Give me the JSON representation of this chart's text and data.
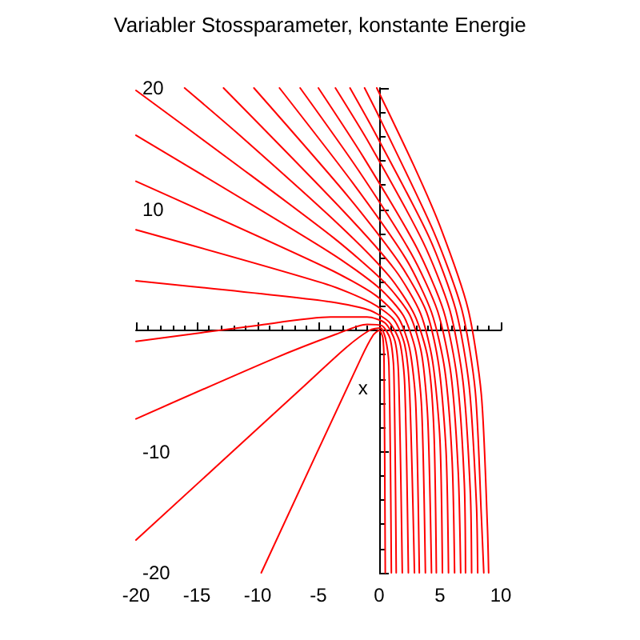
{
  "chart_data": {
    "type": "line",
    "title": "Variabler Stossparameter, konstante Energie",
    "xlabel": "x",
    "xlim": [
      -20,
      10
    ],
    "xticks": [
      -20,
      -15,
      -10,
      -5,
      0,
      5,
      10
    ],
    "ylim": [
      -20,
      20
    ],
    "yticks": [
      -20,
      -10,
      10,
      20
    ],
    "marker": "none",
    "line_style": "solid",
    "series": [
      {
        "color": "#ff0000",
        "x": [
          0.5,
          0.4,
          0.3,
          0,
          -0.5,
          -1.5,
          -9.7
        ],
        "values": [
          -20,
          -2.7,
          -0.6,
          0,
          -0.4,
          -2.3,
          -20
        ]
      },
      {
        "color": "#ff0000",
        "x": [
          1,
          0.8,
          0.5,
          0.1,
          -0.8,
          -2.7,
          -6.3,
          -20
        ],
        "values": [
          -20,
          -2.9,
          -0.6,
          0.2,
          0,
          -1.4,
          -4.7,
          -17.3
        ]
      },
      {
        "color": "#ff0000",
        "x": [
          1.4,
          1.2,
          0.9,
          0.2,
          -1,
          -3.5,
          -8.6,
          -20
        ],
        "values": [
          -20,
          -3.3,
          -0.7,
          0.4,
          0.5,
          -0.3,
          -2.3,
          -7.3
        ]
      },
      {
        "color": "#ff0000",
        "x": [
          1.9,
          1.6,
          1.3,
          0.5,
          -1,
          -4,
          -10.1,
          -20
        ],
        "values": [
          -20,
          -3.9,
          -0.9,
          0.6,
          1.1,
          1.1,
          0.4,
          -0.9
        ]
      },
      {
        "color": "#ff0000",
        "x": [
          2.4,
          2.1,
          1.7,
          0.8,
          -0.9,
          -4.3,
          -20
        ],
        "values": [
          -20,
          -4.5,
          -1,
          0.7,
          1.7,
          2.4,
          4.1
        ]
      },
      {
        "color": "#ff0000",
        "x": [
          2.9,
          2.5,
          2.1,
          1.2,
          -0.7,
          -4.3,
          -20
        ],
        "values": [
          -20,
          -5.1,
          -1.2,
          0.9,
          2.3,
          3.8,
          8.3
        ]
      },
      {
        "color": "#ff0000",
        "x": [
          3.3,
          3,
          2.5,
          1.6,
          -0.3,
          -4.2,
          -20
        ],
        "values": [
          -20,
          -5.9,
          -1.5,
          1,
          2.9,
          5.1,
          12.3
        ]
      },
      {
        "color": "#ff0000",
        "x": [
          3.8,
          3.5,
          3,
          2,
          0,
          -4,
          -20
        ],
        "values": [
          -20,
          -6.6,
          -1.7,
          1.2,
          3.5,
          6.4,
          16.1
        ]
      },
      {
        "color": "#ff0000",
        "x": [
          4.3,
          4,
          3.5,
          2.5,
          0.4,
          -3.7,
          -11.9,
          -20
        ],
        "values": [
          -20,
          -7.4,
          -2,
          1.3,
          4,
          7.6,
          13.8,
          19.8
        ]
      },
      {
        "color": "#ff0000",
        "x": [
          4.7,
          4.5,
          4,
          2.9,
          0.8,
          -3.4,
          -11.7,
          -16
        ],
        "values": [
          -20,
          -8.3,
          -2.3,
          1.3,
          4.5,
          8.8,
          16.3,
          20
        ]
      },
      {
        "color": "#ff0000",
        "x": [
          5.2,
          5,
          4.4,
          3.4,
          1.3,
          -3,
          -12.8
        ],
        "values": [
          -20,
          -9.1,
          -2.6,
          1.4,
          5,
          9.9,
          20
        ]
      },
      {
        "color": "#ff0000",
        "x": [
          5.7,
          5.5,
          4.9,
          3.9,
          1.7,
          -2.6,
          -10.3
        ],
        "values": [
          -20,
          -10,
          -2.9,
          1.5,
          5.5,
          11.1,
          20
        ]
      },
      {
        "color": "#ff0000",
        "x": [
          6.2,
          6,
          5.4,
          4.3,
          2.2,
          -2.2,
          -8.2
        ],
        "values": [
          -20,
          -10.8,
          -3.3,
          1.5,
          5.9,
          12.2,
          20
        ]
      },
      {
        "color": "#ff0000",
        "x": [
          6.7,
          6.5,
          5.9,
          4.8,
          2.6,
          -1.7,
          -6.5
        ],
        "values": [
          -20,
          -11.7,
          -3.6,
          1.6,
          6.4,
          13.2,
          20
        ]
      },
      {
        "color": "#ff0000",
        "x": [
          7.1,
          7,
          6.4,
          5.3,
          3.1,
          -1.3,
          -5
        ],
        "values": [
          -20,
          -12.6,
          -3.9,
          1.6,
          6.8,
          14.3,
          20
        ]
      },
      {
        "color": "#ff0000",
        "x": [
          7.6,
          7.5,
          6.9,
          5.8,
          3.6,
          -0.8,
          -3.6
        ],
        "values": [
          -20,
          -13.5,
          -4.3,
          1.7,
          7.3,
          15.4,
          20
        ]
      },
      {
        "color": "#ff0000",
        "x": [
          8.1,
          8,
          7.4,
          6.3,
          4.1,
          -0.4,
          -2.4
        ],
        "values": [
          -20,
          -14.4,
          -4.6,
          1.7,
          7.7,
          16.4,
          20
        ]
      },
      {
        "color": "#ff0000",
        "x": [
          8.6,
          8.4,
          7.9,
          6.8,
          4.5,
          0.1,
          -1.2
        ],
        "values": [
          -20,
          -15.3,
          -5,
          1.7,
          8.1,
          17.4,
          20
        ]
      },
      {
        "color": "#ff0000",
        "x": [
          9,
          8.9,
          8.4,
          7.3,
          5,
          2.8,
          -0.2
        ],
        "values": [
          -20,
          -16.2,
          -5.3,
          1.8,
          8.6,
          13.7,
          20
        ]
      }
    ]
  }
}
